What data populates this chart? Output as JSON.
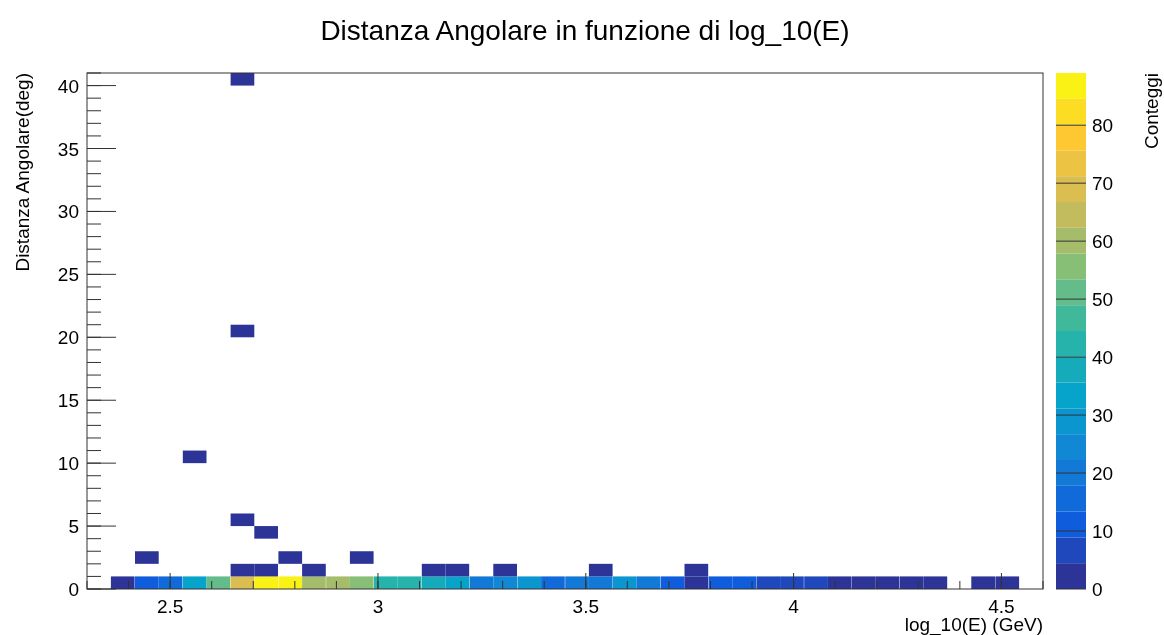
{
  "chart_data": {
    "type": "scatter",
    "title": "Distanza Angolare in funzione di log_10(E)",
    "xlabel": "log_10(E) (GeV)",
    "ylabel": "Distanza Angolare(deg)",
    "clabel": "Conteggi",
    "marker": "square",
    "grid": false,
    "xlim": [
      2.3,
      4.6
    ],
    "xticks": [
      2.5,
      3,
      3.5,
      4,
      4.5
    ],
    "ylim": [
      0,
      41
    ],
    "yticks": [
      0,
      5,
      10,
      15,
      20,
      25,
      30,
      35,
      40
    ],
    "clim": [
      0,
      89
    ],
    "cticks": [
      0,
      10,
      20,
      30,
      40,
      50,
      60,
      70,
      80
    ],
    "series": [
      {
        "x": [
          2.386,
          2.444,
          2.501,
          2.559,
          2.616,
          2.674,
          2.731,
          2.789,
          2.846,
          2.904,
          2.961,
          3.019,
          3.076,
          3.134,
          3.191,
          3.249,
          3.306,
          3.364,
          3.421,
          3.479,
          3.536,
          3.594,
          3.651,
          3.709,
          3.766,
          3.824,
          3.881,
          3.939,
          3.996,
          4.054,
          4.111,
          4.169,
          4.226,
          4.284,
          4.341,
          4.456,
          4.514,
          2.674,
          2.731,
          2.846,
          3.134,
          3.191,
          3.306,
          3.536,
          3.766,
          2.444,
          2.789,
          2.961,
          2.731,
          2.674,
          2.559,
          2.674,
          2.674
        ],
        "values": [
          0.5,
          0.5,
          0.5,
          0.5,
          0.5,
          0.5,
          0.5,
          0.5,
          0.5,
          0.5,
          0.5,
          0.5,
          0.5,
          0.5,
          0.5,
          0.5,
          0.5,
          0.5,
          0.5,
          0.5,
          0.5,
          0.5,
          0.5,
          0.5,
          0.5,
          0.5,
          0.5,
          0.5,
          0.5,
          0.5,
          0.5,
          0.5,
          0.5,
          0.5,
          0.5,
          0.5,
          0.5,
          1.5,
          1.5,
          1.5,
          1.5,
          1.5,
          1.5,
          1.5,
          1.5,
          2.5,
          2.5,
          2.5,
          4.5,
          5.5,
          10.5,
          20.5,
          40.5
        ],
        "cvalues": [
          2,
          10,
          17,
          35,
          52,
          68,
          88,
          87,
          62,
          61,
          57,
          42,
          41,
          37,
          35,
          22,
          25,
          30,
          15,
          20,
          20,
          30,
          22,
          12,
          3,
          12,
          12,
          8,
          5,
          8,
          2,
          2,
          2,
          2,
          2,
          2,
          2,
          1,
          1,
          1,
          1,
          1,
          1,
          1,
          1,
          1,
          1,
          1,
          1,
          1,
          1,
          1,
          1
        ]
      }
    ]
  }
}
